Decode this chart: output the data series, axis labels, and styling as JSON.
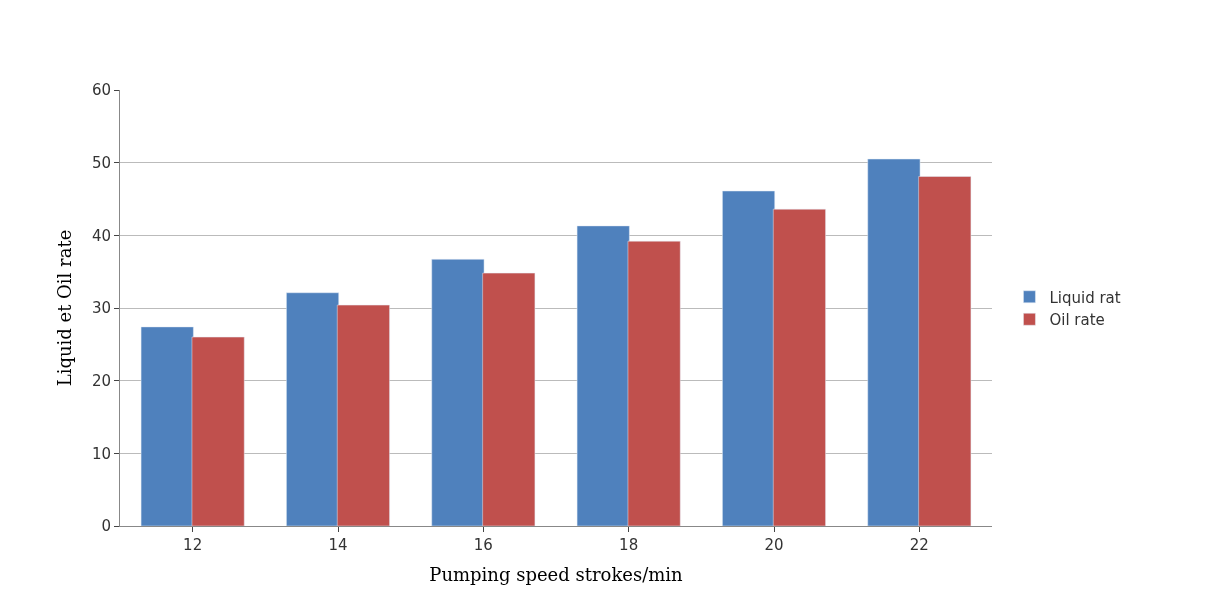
{
  "chart_data": {
    "type": "bar",
    "xlabel": "Pumping speed strokes/min",
    "ylabel": "Liquid et Oil rate",
    "categories": [
      "12",
      "14",
      "16",
      "18",
      "20",
      "22"
    ],
    "series": [
      {
        "name": "Liquid rat",
        "color": "#4f81bd",
        "values": [
          27.4,
          32.1,
          36.7,
          41.3,
          46.1,
          50.5
        ]
      },
      {
        "name": "Oil rate",
        "color": "#c0504d",
        "values": [
          26.0,
          30.4,
          34.8,
          39.2,
          43.6,
          48.1
        ]
      }
    ],
    "ylim": [
      0,
      60
    ],
    "yticks": [
      0,
      10,
      20,
      30,
      40,
      50,
      60
    ],
    "grid": "y",
    "legend": "right"
  }
}
